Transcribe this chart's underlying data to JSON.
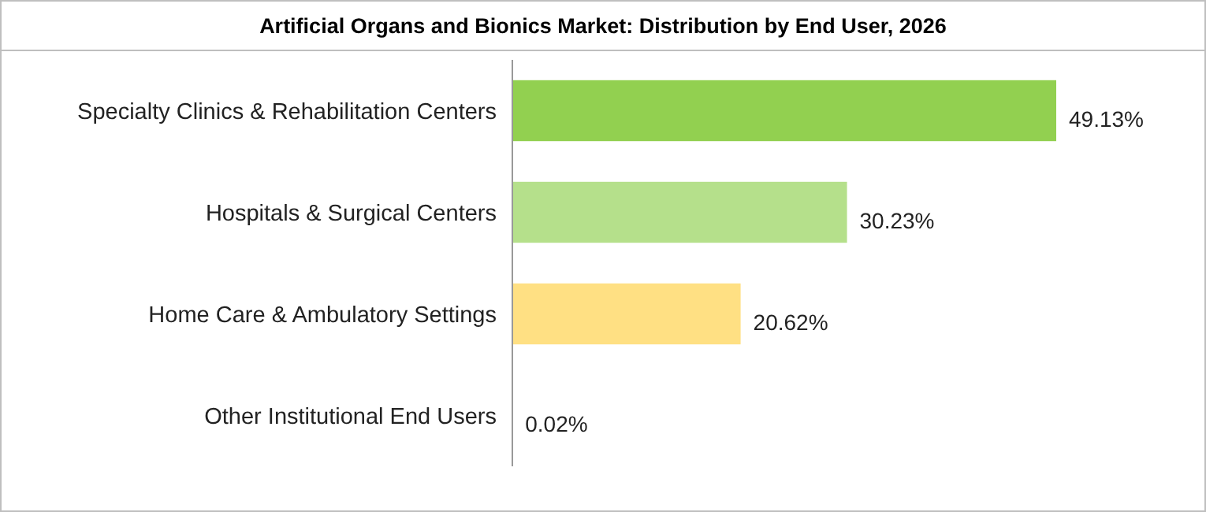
{
  "chart_data": {
    "type": "bar",
    "orientation": "horizontal",
    "title": "Artificial Organs and Bionics Market: Distribution by End User, 2026",
    "categories": [
      "Specialty Clinics & Rehabilitation Centers",
      "Hospitals & Surgical Centers",
      "Home Care & Ambulatory Settings",
      "Other Institutional End Users"
    ],
    "values": [
      49.13,
      30.23,
      20.62,
      0.02
    ],
    "colors": [
      "#92d050",
      "#b5e08b",
      "#ffe083",
      "#d9d9d9"
    ],
    "value_labels": [
      "49.13%",
      "30.23%",
      "20.62%",
      "0.02%"
    ]
  }
}
